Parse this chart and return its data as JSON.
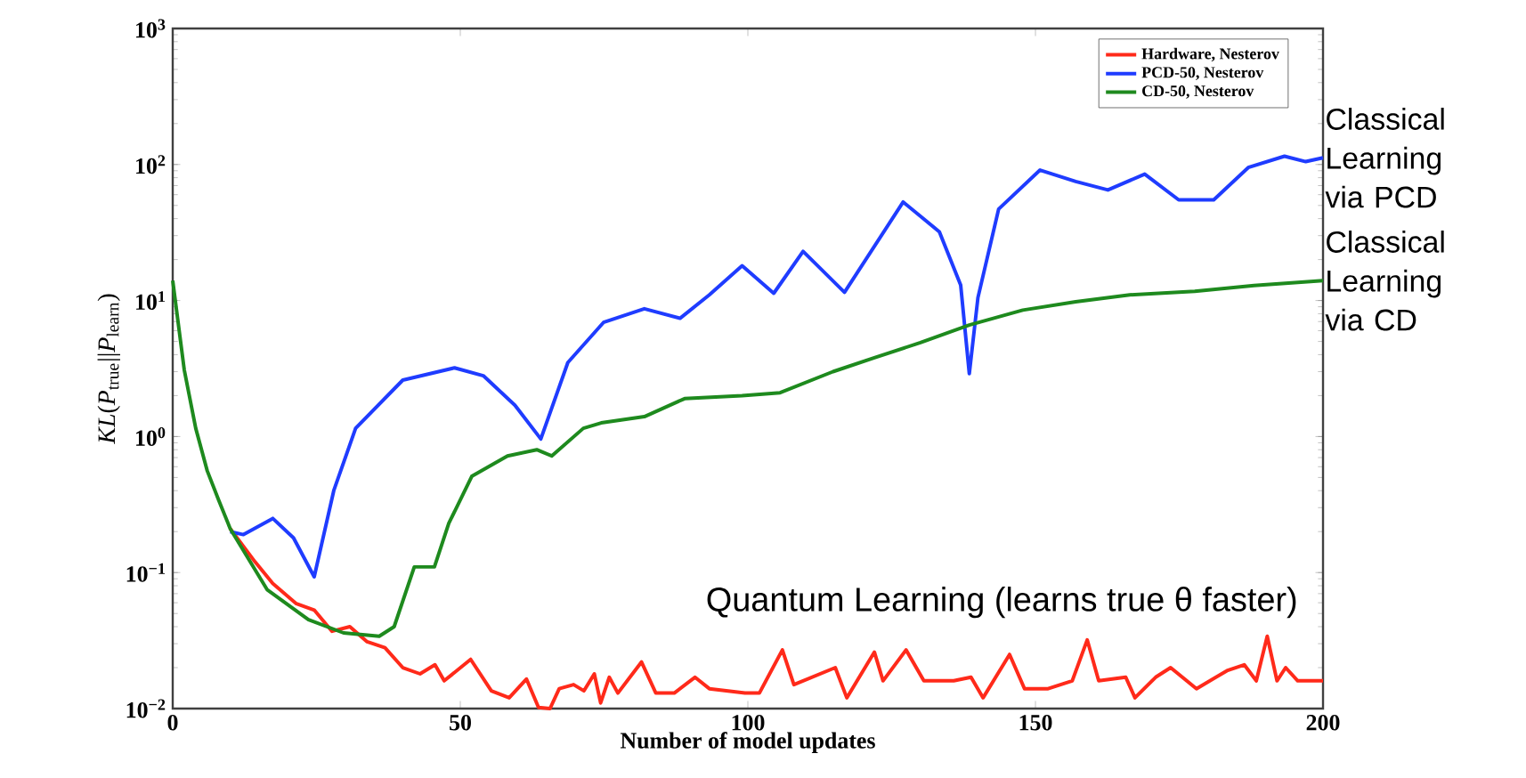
{
  "chart_data": {
    "type": "line",
    "xlabel": "Number of model updates",
    "ylabel": "*KL*(*P*$_{true}$||*P*$_{learn}$)",
    "log": "y",
    "xlim": [
      0,
      200
    ],
    "xticks": [
      0,
      50,
      100,
      150,
      200
    ],
    "ylim": [
      0.01,
      1000
    ],
    "yticks": [
      {
        "value": 0.01,
        "label": "10$^{−2}$"
      },
      {
        "value": 0.1,
        "label": "10$^{−1}$"
      },
      {
        "value": 1,
        "label": "10$^{0}$"
      },
      {
        "value": 10,
        "label": "10$^{1}$"
      },
      {
        "value": 100,
        "label": "10$^{2}$"
      },
      {
        "value": 1000,
        "label": "10$^{3}$"
      }
    ],
    "legend": "top right",
    "grid": false,
    "series": [
      {
        "name": "Hardware, Nesterov",
        "color": "#ff2a1a",
        "x": [
          10,
          14.3,
          17.4,
          21.5,
          24.6,
          27.7,
          30.8,
          33.8,
          36.9,
          40,
          43,
          45.6,
          47.2,
          51.8,
          55.4,
          58.5,
          61.5,
          63.6,
          65.6,
          67.2,
          69.7,
          71.5,
          73.3,
          74.4,
          75.9,
          77.4,
          81.5,
          84,
          87.2,
          90.8,
          93.3,
          99.5,
          102,
          106,
          108,
          115.2,
          117.2,
          122,
          123.5,
          127.5,
          130.6,
          135.8,
          138.8,
          140.9,
          145.5,
          148.1,
          152.2,
          156.4,
          159,
          161,
          165.7,
          167.3,
          170.9,
          173.5,
          178,
          183.3,
          186.3,
          188.4,
          190.3,
          192,
          193.5,
          195.6,
          200
        ],
        "values": [
          0.21,
          0.12,
          0.083,
          0.059,
          0.053,
          0.037,
          0.04,
          0.031,
          0.028,
          0.02,
          0.018,
          0.021,
          0.016,
          0.023,
          0.0135,
          0.012,
          0.0165,
          0.0102,
          0.01,
          0.014,
          0.015,
          0.0135,
          0.018,
          0.011,
          0.017,
          0.013,
          0.022,
          0.013,
          0.013,
          0.017,
          0.014,
          0.013,
          0.013,
          0.027,
          0.015,
          0.02,
          0.012,
          0.026,
          0.016,
          0.027,
          0.016,
          0.016,
          0.017,
          0.012,
          0.025,
          0.014,
          0.014,
          0.016,
          0.032,
          0.016,
          0.017,
          0.012,
          0.017,
          0.02,
          0.014,
          0.019,
          0.021,
          0.016,
          0.034,
          0.016,
          0.02,
          0.016,
          0.016
        ]
      },
      {
        "name": "PCD-50, Nesterov",
        "color": "#1f3cff",
        "x": [
          10,
          12.3,
          17.4,
          21,
          24.6,
          28,
          31.8,
          40,
          49,
          54,
          59.5,
          64,
          68.7,
          74.9,
          82,
          88.2,
          93.3,
          99,
          104.5,
          109.6,
          116.8,
          127,
          133.3,
          137,
          138.5,
          140,
          143.6,
          150.8,
          157,
          162.6,
          169,
          174.9,
          181,
          187,
          193.3,
          197,
          200
        ],
        "values": [
          0.2,
          0.19,
          0.25,
          0.18,
          0.093,
          0.4,
          1.15,
          2.6,
          3.2,
          2.8,
          1.7,
          0.96,
          3.5,
          6.9,
          8.7,
          7.4,
          11,
          18,
          11.3,
          23,
          11.5,
          53,
          32,
          13,
          2.9,
          10.5,
          47,
          91,
          75,
          65,
          85,
          55,
          55,
          95,
          115,
          105,
          112
        ]
      },
      {
        "name": "CD-50, Nesterov",
        "color": "#1e8a1e",
        "x": [
          0,
          2,
          4,
          6,
          8,
          10,
          16.4,
          23.6,
          29.7,
          35.9,
          38.5,
          42,
          45.5,
          48,
          52,
          58.2,
          63.3,
          65.9,
          71.4,
          74.5,
          82,
          89,
          99,
          105.6,
          114.8,
          122,
          130,
          138.5,
          147.8,
          157,
          166.4,
          177.7,
          188,
          200
        ],
        "values": [
          14,
          3.1,
          1.15,
          0.56,
          0.34,
          0.21,
          0.075,
          0.045,
          0.036,
          0.034,
          0.04,
          0.11,
          0.11,
          0.23,
          0.51,
          0.72,
          0.8,
          0.72,
          1.15,
          1.26,
          1.4,
          1.9,
          2.0,
          2.1,
          3.0,
          3.8,
          4.9,
          6.6,
          8.5,
          9.8,
          11,
          11.7,
          12.9,
          14
        ]
      }
    ],
    "annotations": [
      "Quantum Learning (learns true θ faster)",
      {
        "text": "Classical Learning via PCD",
        "x": 200,
        "y": 112
      },
      {
        "text": "Classical Learning via CD",
        "x": 200,
        "y": 14
      }
    ]
  }
}
